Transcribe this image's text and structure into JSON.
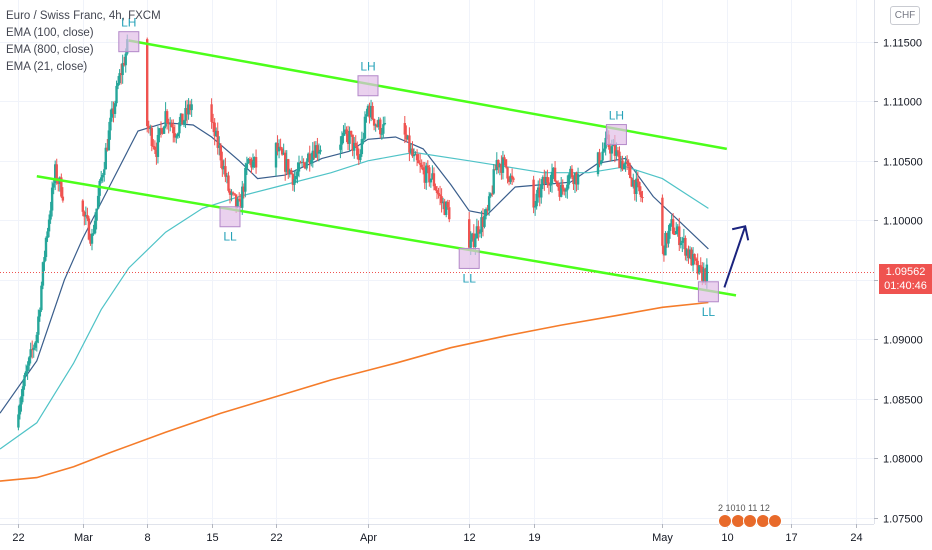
{
  "header": {
    "symbol_line": "Euro / Swiss Franc, 4h, FXCM",
    "indicators": [
      "EMA (100, close)",
      "EMA (800, close)",
      "EMA (21, close)"
    ]
  },
  "currency_badge": "CHF",
  "last_price": "1.09562",
  "countdown": "01:40:46",
  "events_label": "2 1010 11 12",
  "colors": {
    "up": "#26a69a",
    "down": "#ef5350",
    "ema21": "#3a5e8c",
    "ema100": "#4fc3c7",
    "ema800": "#f57c2a",
    "channel": "#4cff1a",
    "marker_fill": "#e1bee7",
    "marker_stroke": "#b388c9",
    "marker_label": "#26a2b8",
    "arrow": "#1a237e"
  },
  "chart_data": {
    "type": "line",
    "title": "Euro / Swiss Franc, 4h, FXCM",
    "ylim": [
      1.0745,
      1.1185
    ],
    "y_ticks": [
      1.115,
      1.11,
      1.105,
      1.1,
      1.095,
      1.09,
      1.085,
      1.08,
      1.075
    ],
    "y_tick_labels": [
      "1.11500",
      "1.11000",
      "1.10500",
      "1.10000",
      "1.09500",
      "1.09000",
      "1.08500",
      "1.08000",
      "1.07500"
    ],
    "x_range": [
      "2021-02-20",
      "2021-05-26"
    ],
    "x_ticks": [
      {
        "date": "2021-02-22",
        "label": "22"
      },
      {
        "date": "2021-03-01",
        "label": "Mar"
      },
      {
        "date": "2021-03-08",
        "label": "8"
      },
      {
        "date": "2021-03-15",
        "label": "15"
      },
      {
        "date": "2021-03-22",
        "label": "22"
      },
      {
        "date": "2021-04-01",
        "label": "Apr"
      },
      {
        "date": "2021-04-12",
        "label": "12"
      },
      {
        "date": "2021-04-19",
        "label": "19"
      },
      {
        "date": "2021-05-03",
        "label": "May"
      },
      {
        "date": "2021-05-10",
        "label": "10"
      },
      {
        "date": "2021-05-17",
        "label": "17"
      },
      {
        "date": "2021-05-24",
        "label": "24"
      }
    ],
    "price_path": [
      [
        "2021-02-20",
        1.0826
      ],
      [
        "2021-02-22",
        1.0845
      ],
      [
        "2021-02-24",
        1.0905
      ],
      [
        "2021-02-25",
        1.0985
      ],
      [
        "2021-02-26",
        1.104
      ],
      [
        "2021-02-27",
        1.102
      ],
      [
        "2021-02-28",
        1.0965
      ],
      [
        "2021-03-01",
        1.1005
      ],
      [
        "2021-03-02",
        1.0985
      ],
      [
        "2021-03-03",
        1.1035
      ],
      [
        "2021-03-04",
        1.108
      ],
      [
        "2021-03-05",
        1.112
      ],
      [
        "2021-03-06",
        1.115
      ],
      [
        "2021-03-07",
        1.1105
      ],
      [
        "2021-03-08",
        1.108
      ],
      [
        "2021-03-09",
        1.106
      ],
      [
        "2021-03-10",
        1.109
      ],
      [
        "2021-03-11",
        1.1075
      ],
      [
        "2021-03-12",
        1.1085
      ],
      [
        "2021-03-13",
        1.11
      ],
      [
        "2021-03-14",
        1.107
      ],
      [
        "2021-03-15",
        1.108
      ],
      [
        "2021-03-16",
        1.1055
      ],
      [
        "2021-03-17",
        1.102
      ],
      [
        "2021-03-18",
        1.101
      ],
      [
        "2021-03-19",
        1.105
      ],
      [
        "2021-03-20",
        1.1045
      ],
      [
        "2021-03-22",
        1.106
      ],
      [
        "2021-03-24",
        1.1035
      ],
      [
        "2021-03-26",
        1.106
      ],
      [
        "2021-03-28",
        1.1065
      ],
      [
        "2021-03-30",
        1.107
      ],
      [
        "2021-03-31",
        1.105
      ],
      [
        "2021-04-01",
        1.1095
      ],
      [
        "2021-04-02",
        1.108
      ],
      [
        "2021-04-03",
        1.1075
      ],
      [
        "2021-04-05",
        1.107
      ],
      [
        "2021-04-06",
        1.105
      ],
      [
        "2021-04-07",
        1.104
      ],
      [
        "2021-04-08",
        1.1035
      ],
      [
        "2021-04-09",
        1.1015
      ],
      [
        "2021-04-10",
        1.1005
      ],
      [
        "2021-04-11",
        1.0998
      ],
      [
        "2021-04-12",
        1.0975
      ],
      [
        "2021-04-13",
        1.0995
      ],
      [
        "2021-04-14",
        1.1005
      ],
      [
        "2021-04-15",
        1.105
      ],
      [
        "2021-04-16",
        1.1045
      ],
      [
        "2021-04-17",
        1.1025
      ],
      [
        "2021-04-18",
        1.102
      ],
      [
        "2021-04-19",
        1.101
      ],
      [
        "2021-04-20",
        1.103
      ],
      [
        "2021-04-21",
        1.104
      ],
      [
        "2021-04-22",
        1.1025
      ],
      [
        "2021-04-23",
        1.104
      ],
      [
        "2021-04-25",
        1.103
      ],
      [
        "2021-04-26",
        1.105
      ],
      [
        "2021-04-27",
        1.1065
      ],
      [
        "2021-04-28",
        1.1055
      ],
      [
        "2021-04-29",
        1.1045
      ],
      [
        "2021-04-30",
        1.103
      ],
      [
        "2021-05-01",
        1.1015
      ],
      [
        "2021-05-02",
        1.0995
      ],
      [
        "2021-05-03",
        1.0975
      ],
      [
        "2021-05-04",
        1.0995
      ],
      [
        "2021-05-05",
        1.0985
      ],
      [
        "2021-05-06",
        1.097
      ],
      [
        "2021-05-07",
        1.0955
      ],
      [
        "2021-05-08",
        1.0956
      ]
    ],
    "series": [
      {
        "name": "EMA (21, close)",
        "values": [
          [
            "2021-02-20",
            1.0838
          ],
          [
            "2021-02-24",
            1.0882
          ],
          [
            "2021-02-27",
            1.095
          ],
          [
            "2021-03-01",
            1.0985
          ],
          [
            "2021-03-04",
            1.103
          ],
          [
            "2021-03-07",
            1.1075
          ],
          [
            "2021-03-10",
            1.1082
          ],
          [
            "2021-03-13",
            1.108
          ],
          [
            "2021-03-15",
            1.107
          ],
          [
            "2021-03-18",
            1.105
          ],
          [
            "2021-03-20",
            1.1035
          ],
          [
            "2021-03-23",
            1.1038
          ],
          [
            "2021-03-27",
            1.1052
          ],
          [
            "2021-03-30",
            1.1058
          ],
          [
            "2021-04-01",
            1.1068
          ],
          [
            "2021-04-04",
            1.107
          ],
          [
            "2021-04-07",
            1.106
          ],
          [
            "2021-04-10",
            1.103
          ],
          [
            "2021-04-12",
            1.1008
          ],
          [
            "2021-04-14",
            1.1005
          ],
          [
            "2021-04-17",
            1.1028
          ],
          [
            "2021-04-20",
            1.103
          ],
          [
            "2021-04-23",
            1.1032
          ],
          [
            "2021-04-26",
            1.1048
          ],
          [
            "2021-04-29",
            1.1052
          ],
          [
            "2021-05-02",
            1.102
          ],
          [
            "2021-05-05",
            1.0998
          ],
          [
            "2021-05-08",
            1.0976
          ]
        ]
      },
      {
        "name": "EMA (100, close)",
        "values": [
          [
            "2021-02-20",
            1.0808
          ],
          [
            "2021-02-24",
            1.083
          ],
          [
            "2021-02-28",
            1.088
          ],
          [
            "2021-03-03",
            1.0925
          ],
          [
            "2021-03-06",
            1.096
          ],
          [
            "2021-03-10",
            1.099
          ],
          [
            "2021-03-14",
            1.101
          ],
          [
            "2021-03-18",
            1.102
          ],
          [
            "2021-03-22",
            1.1028
          ],
          [
            "2021-03-28",
            1.104
          ],
          [
            "2021-04-01",
            1.105
          ],
          [
            "2021-04-06",
            1.1057
          ],
          [
            "2021-04-12",
            1.105
          ],
          [
            "2021-04-16",
            1.1045
          ],
          [
            "2021-04-20",
            1.104
          ],
          [
            "2021-04-25",
            1.104
          ],
          [
            "2021-04-29",
            1.1045
          ],
          [
            "2021-05-03",
            1.1035
          ],
          [
            "2021-05-06",
            1.102
          ],
          [
            "2021-05-08",
            1.101
          ]
        ]
      },
      {
        "name": "EMA (800, close)",
        "values": [
          [
            "2021-02-20",
            1.0781
          ],
          [
            "2021-02-24",
            1.0784
          ],
          [
            "2021-02-28",
            1.0793
          ],
          [
            "2021-03-04",
            1.0805
          ],
          [
            "2021-03-10",
            1.0822
          ],
          [
            "2021-03-16",
            1.0838
          ],
          [
            "2021-03-22",
            1.0852
          ],
          [
            "2021-03-28",
            1.0866
          ],
          [
            "2021-04-04",
            1.088
          ],
          [
            "2021-04-10",
            1.0893
          ],
          [
            "2021-04-16",
            1.0903
          ],
          [
            "2021-04-22",
            1.0912
          ],
          [
            "2021-04-28",
            1.092
          ],
          [
            "2021-05-03",
            1.0927
          ],
          [
            "2021-05-08",
            1.0931
          ]
        ]
      }
    ],
    "annotations": {
      "channel_lines": [
        [
          [
            "2021-03-06",
            1.1151
          ],
          [
            "2021-05-10",
            1.106
          ]
        ],
        [
          [
            "2021-02-24",
            1.1037
          ],
          [
            "2021-05-11",
            1.0937
          ]
        ]
      ],
      "markers": [
        {
          "date": "2021-03-06",
          "price": 1.115,
          "label": "LH",
          "label_pos": "above"
        },
        {
          "date": "2021-03-17",
          "price": 1.1003,
          "label": "LL",
          "label_pos": "below"
        },
        {
          "date": "2021-04-01",
          "price": 1.1113,
          "label": "LH",
          "label_pos": "above"
        },
        {
          "date": "2021-04-12",
          "price": 1.0968,
          "label": "LL",
          "label_pos": "below"
        },
        {
          "date": "2021-04-28",
          "price": 1.1072,
          "label": "LH",
          "label_pos": "above"
        },
        {
          "date": "2021-05-08",
          "price": 1.094,
          "label": "LL",
          "label_pos": "below"
        }
      ],
      "arrow": [
        [
          "2021-05-08",
          1.0952
        ],
        [
          "2021-05-12",
          1.0995
        ]
      ],
      "current_price_line": 1.09562
    }
  }
}
